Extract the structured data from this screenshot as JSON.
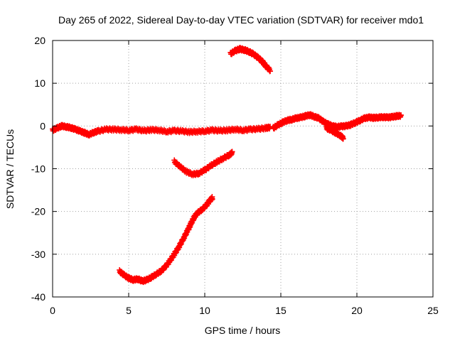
{
  "chart_data": {
    "type": "scatter",
    "title": "Day 265 of 2022, Sidereal Day-to-day VTEC variation (SDTVAR) for receiver mdo1",
    "xlabel": "GPS time / hours",
    "ylabel": "SDTVAR / TECUs",
    "xlim": [
      0,
      25
    ],
    "ylim": [
      -40,
      20
    ],
    "x_ticks": [
      0,
      5,
      10,
      15,
      20,
      25
    ],
    "y_ticks": [
      -40,
      -30,
      -20,
      -10,
      0,
      10,
      20
    ],
    "x_tick_labels": [
      "0",
      "5",
      "10",
      "15",
      "20",
      "25"
    ],
    "y_tick_labels": [
      "-40",
      "-30",
      "-20",
      "-10",
      "0",
      "10",
      "20"
    ],
    "grid": true,
    "legend": "none",
    "colors": {
      "series": "#ff0000",
      "grid": "#a0a0a0",
      "axis": "#000000"
    },
    "marker": "plus",
    "series": [
      {
        "name": "near-zero track",
        "points": [
          [
            0.0,
            -1.0
          ],
          [
            0.3,
            -0.5
          ],
          [
            0.6,
            0.0
          ],
          [
            0.9,
            -0.2
          ],
          [
            1.2,
            -0.4
          ],
          [
            1.5,
            -0.8
          ],
          [
            1.8,
            -1.2
          ],
          [
            2.1,
            -1.6
          ],
          [
            2.4,
            -2.0
          ],
          [
            2.7,
            -1.5
          ],
          [
            3.0,
            -1.2
          ],
          [
            3.5,
            -0.8
          ],
          [
            4.0,
            -0.8
          ],
          [
            4.5,
            -0.9
          ],
          [
            5.0,
            -1.0
          ],
          [
            5.5,
            -0.8
          ],
          [
            6.0,
            -1.1
          ],
          [
            6.5,
            -0.9
          ],
          [
            7.0,
            -1.0
          ],
          [
            7.5,
            -1.3
          ],
          [
            8.0,
            -1.1
          ],
          [
            8.5,
            -1.2
          ],
          [
            9.0,
            -1.4
          ],
          [
            9.5,
            -1.3
          ],
          [
            10.0,
            -1.2
          ],
          [
            10.5,
            -1.0
          ],
          [
            11.0,
            -1.1
          ],
          [
            11.5,
            -1.0
          ],
          [
            12.0,
            -0.8
          ],
          [
            12.5,
            -1.0
          ],
          [
            13.0,
            -0.8
          ],
          [
            13.5,
            -0.7
          ],
          [
            14.0,
            -0.5
          ],
          [
            14.3,
            -0.3
          ]
        ]
      },
      {
        "name": "late-day track",
        "points": [
          [
            14.5,
            -0.5
          ],
          [
            14.8,
            0.2
          ],
          [
            15.1,
            0.8
          ],
          [
            15.4,
            1.3
          ],
          [
            15.7,
            1.5
          ],
          [
            16.0,
            1.8
          ],
          [
            16.3,
            2.0
          ],
          [
            16.6,
            2.3
          ],
          [
            16.9,
            2.6
          ],
          [
            17.2,
            2.2
          ],
          [
            17.5,
            1.8
          ],
          [
            17.8,
            1.0
          ],
          [
            18.1,
            0.4
          ],
          [
            18.4,
            0.0
          ],
          [
            18.7,
            -0.2
          ],
          [
            19.0,
            -0.1
          ],
          [
            19.3,
            0.0
          ],
          [
            19.6,
            0.3
          ],
          [
            19.9,
            0.8
          ],
          [
            20.2,
            1.3
          ],
          [
            20.5,
            1.8
          ],
          [
            20.8,
            2.0
          ],
          [
            21.1,
            1.9
          ],
          [
            21.4,
            2.0
          ],
          [
            21.7,
            2.1
          ],
          [
            22.0,
            2.0
          ],
          [
            22.3,
            2.1
          ],
          [
            22.6,
            2.3
          ],
          [
            22.9,
            2.4
          ]
        ]
      },
      {
        "name": "short dip",
        "points": [
          [
            18.0,
            -0.5
          ],
          [
            18.3,
            -1.0
          ],
          [
            18.6,
            -1.6
          ],
          [
            18.9,
            -2.2
          ],
          [
            19.1,
            -2.8
          ]
        ]
      },
      {
        "name": "arc above zero",
        "points": [
          [
            11.7,
            16.9
          ],
          [
            12.0,
            17.6
          ],
          [
            12.3,
            18.0
          ],
          [
            12.6,
            17.8
          ],
          [
            12.9,
            17.4
          ],
          [
            13.2,
            16.8
          ],
          [
            13.5,
            16.0
          ],
          [
            13.8,
            15.0
          ],
          [
            14.0,
            14.1
          ],
          [
            14.3,
            13.0
          ]
        ]
      },
      {
        "name": "bowl near -10",
        "points": [
          [
            8.0,
            -8.3
          ],
          [
            8.4,
            -9.6
          ],
          [
            8.8,
            -10.7
          ],
          [
            9.2,
            -11.3
          ],
          [
            9.6,
            -11.1
          ],
          [
            10.0,
            -10.3
          ],
          [
            10.4,
            -9.3
          ],
          [
            10.8,
            -8.4
          ],
          [
            11.2,
            -7.6
          ],
          [
            11.6,
            -6.8
          ],
          [
            11.8,
            -6.3
          ]
        ]
      },
      {
        "name": "rising track from -35",
        "points": [
          [
            4.4,
            -34.0
          ],
          [
            4.7,
            -34.9
          ],
          [
            5.0,
            -35.6
          ],
          [
            5.3,
            -36.0
          ],
          [
            5.6,
            -35.8
          ],
          [
            5.9,
            -36.3
          ],
          [
            6.2,
            -36.0
          ],
          [
            6.5,
            -35.4
          ],
          [
            6.8,
            -34.7
          ],
          [
            7.1,
            -34.0
          ],
          [
            7.4,
            -33.0
          ],
          [
            7.7,
            -31.6
          ],
          [
            8.0,
            -30.0
          ],
          [
            8.3,
            -28.3
          ],
          [
            8.6,
            -26.3
          ],
          [
            8.9,
            -24.3
          ],
          [
            9.1,
            -22.8
          ],
          [
            9.3,
            -21.4
          ],
          [
            9.5,
            -20.4
          ],
          [
            9.8,
            -19.6
          ],
          [
            10.1,
            -18.6
          ],
          [
            10.3,
            -17.6
          ],
          [
            10.5,
            -16.8
          ]
        ]
      }
    ]
  }
}
